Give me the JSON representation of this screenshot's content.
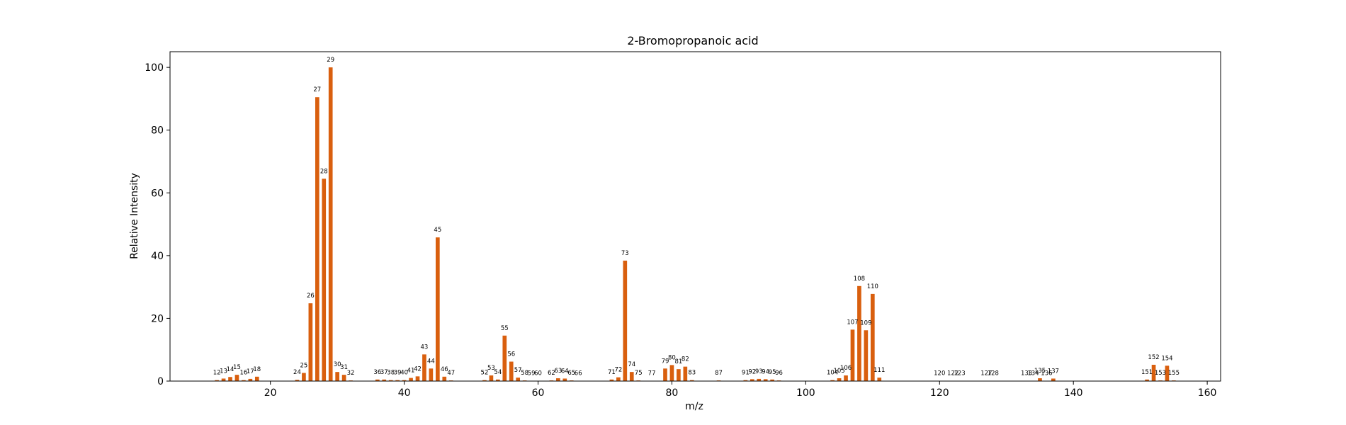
{
  "chart_data": {
    "type": "bar",
    "title": "2-Bromopropanoic acid",
    "xlabel": "m/z",
    "ylabel": "Relative Intensity",
    "xlim": [
      5,
      162
    ],
    "ylim": [
      0,
      105
    ],
    "xticks": [
      20,
      40,
      60,
      80,
      100,
      120,
      140,
      160
    ],
    "yticks": [
      0,
      20,
      40,
      60,
      80,
      100
    ],
    "grid": false,
    "bar_color": "#d95f0e",
    "x": [
      12,
      13,
      14,
      15,
      16,
      17,
      18,
      24,
      25,
      26,
      27,
      28,
      29,
      30,
      31,
      32,
      36,
      37,
      38,
      39,
      40,
      41,
      42,
      43,
      44,
      45,
      46,
      47,
      52,
      53,
      54,
      55,
      56,
      57,
      58,
      59,
      60,
      62,
      63,
      64,
      65,
      66,
      71,
      72,
      73,
      74,
      75,
      77,
      79,
      80,
      81,
      82,
      83,
      87,
      91,
      92,
      93,
      94,
      95,
      96,
      104,
      105,
      106,
      107,
      108,
      109,
      110,
      111,
      120,
      122,
      123,
      127,
      128,
      133,
      134,
      135,
      136,
      137,
      151,
      152,
      153,
      154,
      155
    ],
    "values": [
      0.3,
      0.8,
      1.3,
      2.0,
      0.3,
      0.7,
      1.4,
      0.4,
      2.6,
      24.8,
      90.5,
      64.5,
      100,
      2.9,
      2.0,
      0.2,
      0.5,
      0.5,
      0.3,
      0.3,
      0.3,
      1.0,
      1.5,
      8.5,
      4.0,
      45.8,
      1.4,
      0.2,
      0.3,
      1.8,
      0.5,
      14.5,
      6.2,
      1.1,
      0.2,
      0.1,
      0.1,
      0.2,
      0.9,
      0.8,
      0.2,
      0.1,
      0.5,
      1.2,
      38.4,
      2.9,
      0.2,
      0.1,
      4.0,
      5.1,
      3.8,
      4.6,
      0.3,
      0.2,
      0.3,
      0.6,
      0.7,
      0.6,
      0.5,
      0.2,
      0.3,
      0.9,
      1.8,
      16.4,
      30.3,
      16.2,
      27.8,
      1.1,
      0.1,
      0.1,
      0.1,
      0.1,
      0.1,
      0.1,
      0.1,
      0.9,
      0.1,
      0.8,
      0.5,
      5.2,
      0.2,
      4.9,
      0.2
    ],
    "bar_labels": [
      "12",
      "13",
      "14",
      "15",
      "16",
      "17",
      "18",
      "24",
      "25",
      "26",
      "27",
      "28",
      "29",
      "30",
      "31",
      "32",
      "36",
      "37",
      "38",
      "39",
      "40",
      "41",
      "42",
      "43",
      "44",
      "45",
      "46",
      "47",
      "52",
      "53",
      "54",
      "55",
      "56",
      "57",
      "58",
      "59",
      "60",
      "62",
      "63",
      "64",
      "65",
      "66",
      "71",
      "72",
      "73",
      "74",
      "75",
      "77",
      "79",
      "80",
      "81",
      "82",
      "83",
      "87",
      "91",
      "92",
      "93",
      "94",
      "95",
      "96",
      "104",
      "105",
      "106",
      "107",
      "108",
      "109",
      "110",
      "111",
      "120",
      "122",
      "123",
      "127",
      "128",
      "133",
      "134",
      "135",
      "136",
      "137",
      "151",
      "152",
      "153",
      "154",
      "155"
    ],
    "xtick_labels": [
      "20",
      "40",
      "60",
      "80",
      "100",
      "120",
      "140",
      "160"
    ],
    "ytick_labels": [
      "0",
      "20",
      "40",
      "60",
      "80",
      "100"
    ]
  }
}
